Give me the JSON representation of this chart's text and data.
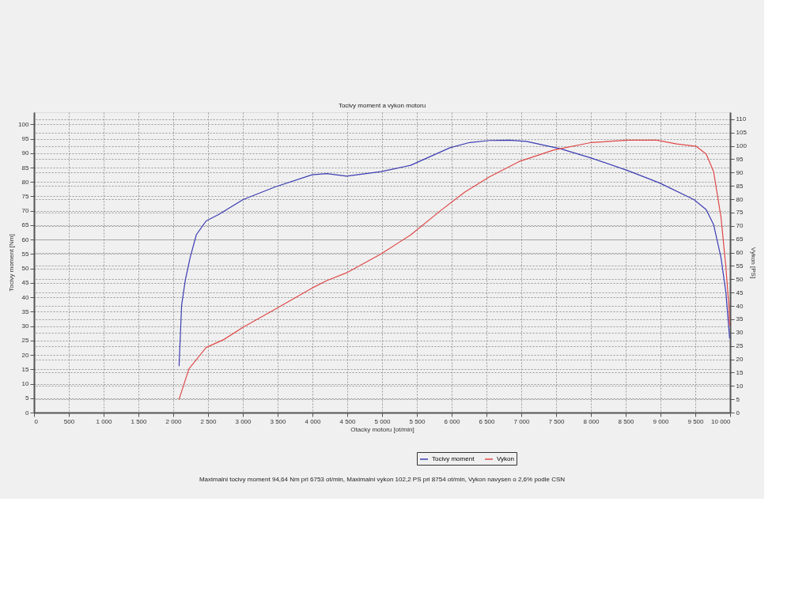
{
  "chart_data": {
    "type": "line",
    "title": "Tocivy moment a vykon motoru",
    "xlabel": "Otacky motoru [ot/min]",
    "ylabel": "Tocivy moment [Nm]",
    "y2label": "Vykon [PS]",
    "annotations": [
      "Maximalni tocivy moment 94,64 Nm pri 6753 ot/min,  Maximalni vykon 102,2 PS pri 8754 ot/min,  Vykon navysen o 2,6% podle CSN"
    ],
    "xlim": [
      0,
      10000
    ],
    "xticks": [
      0,
      500,
      {
        "value": 1000,
        "label": "1 000"
      },
      {
        "value": 1500,
        "label": "1 500"
      },
      {
        "value": 2000,
        "label": "2 000"
      },
      {
        "value": 2500,
        "label": "2 500"
      },
      {
        "value": 3000,
        "label": "3 000"
      },
      {
        "value": 3500,
        "label": "3 500"
      },
      {
        "value": 4000,
        "label": "4 000"
      },
      {
        "value": 4500,
        "label": "4 500"
      },
      {
        "value": 5000,
        "label": "5 000"
      },
      {
        "value": 5500,
        "label": "5 500"
      },
      {
        "value": 6000,
        "label": "6 000"
      },
      {
        "value": 6500,
        "label": "6 500"
      },
      {
        "value": 7000,
        "label": "7 000"
      },
      {
        "value": 7500,
        "label": "7 500"
      },
      {
        "value": 8000,
        "label": "8 000"
      },
      {
        "value": 8500,
        "label": "8 500"
      },
      {
        "value": 9000,
        "label": "9 000"
      },
      {
        "value": 9500,
        "label": "9 500"
      },
      {
        "value": 10000,
        "label": "10 000"
      }
    ],
    "ylim": [
      0,
      104.2
    ],
    "yticks": [
      0,
      5,
      10,
      15,
      20,
      25,
      30,
      35,
      40,
      45,
      50,
      55,
      60,
      65,
      70,
      75,
      80,
      85,
      90,
      95,
      100
    ],
    "y2lim": [
      0,
      112.6
    ],
    "y2ticks": [
      0,
      5,
      10,
      15,
      20,
      25,
      30,
      35,
      40,
      45,
      50,
      55,
      60,
      65,
      70,
      75,
      80,
      85,
      90,
      95,
      100,
      105,
      110
    ],
    "grid": true,
    "legend": "bottom",
    "series": [
      {
        "name": "Tocivy moment",
        "color": "#3c3cb4",
        "x": [
          2084,
          2120,
          2173,
          2243,
          2332,
          2473,
          2650,
          3004,
          3464,
          3995,
          4207,
          4490,
          4986,
          5411,
          5977,
          6260,
          6543,
          6826,
          7073,
          7569,
          7994,
          8524,
          8984,
          9480,
          9657,
          9763,
          9869,
          9940,
          9993
        ],
        "values": [
          16.1,
          37.1,
          45.9,
          53.8,
          61.7,
          66.5,
          68.7,
          73.9,
          78.3,
          82.5,
          82.9,
          82.0,
          83.6,
          85.8,
          91.9,
          93.7,
          94.4,
          94.5,
          94.1,
          91.5,
          88.4,
          84.0,
          79.7,
          73.9,
          70.4,
          65.2,
          53.8,
          41.5,
          25.7
        ]
      },
      {
        "name": "Vykon",
        "color": "#e04848",
        "axis": "y2",
        "x": [
          2084,
          2226,
          2473,
          2721,
          3004,
          3429,
          3995,
          4207,
          4490,
          4986,
          5411,
          5835,
          6189,
          6543,
          6968,
          7463,
          7994,
          8524,
          8949,
          9232,
          9515,
          9657,
          9763,
          9869,
          9940,
          9982,
          9993
        ],
        "values": [
          5.0,
          16.4,
          24.4,
          27.3,
          32.0,
          38.2,
          46.7,
          49.5,
          52.4,
          59.5,
          66.6,
          75.6,
          82.7,
          88.4,
          94.1,
          98.4,
          101.2,
          102.1,
          102.1,
          100.7,
          99.8,
          96.9,
          90.3,
          73.3,
          54.3,
          40.1,
          32.5
        ]
      }
    ]
  }
}
